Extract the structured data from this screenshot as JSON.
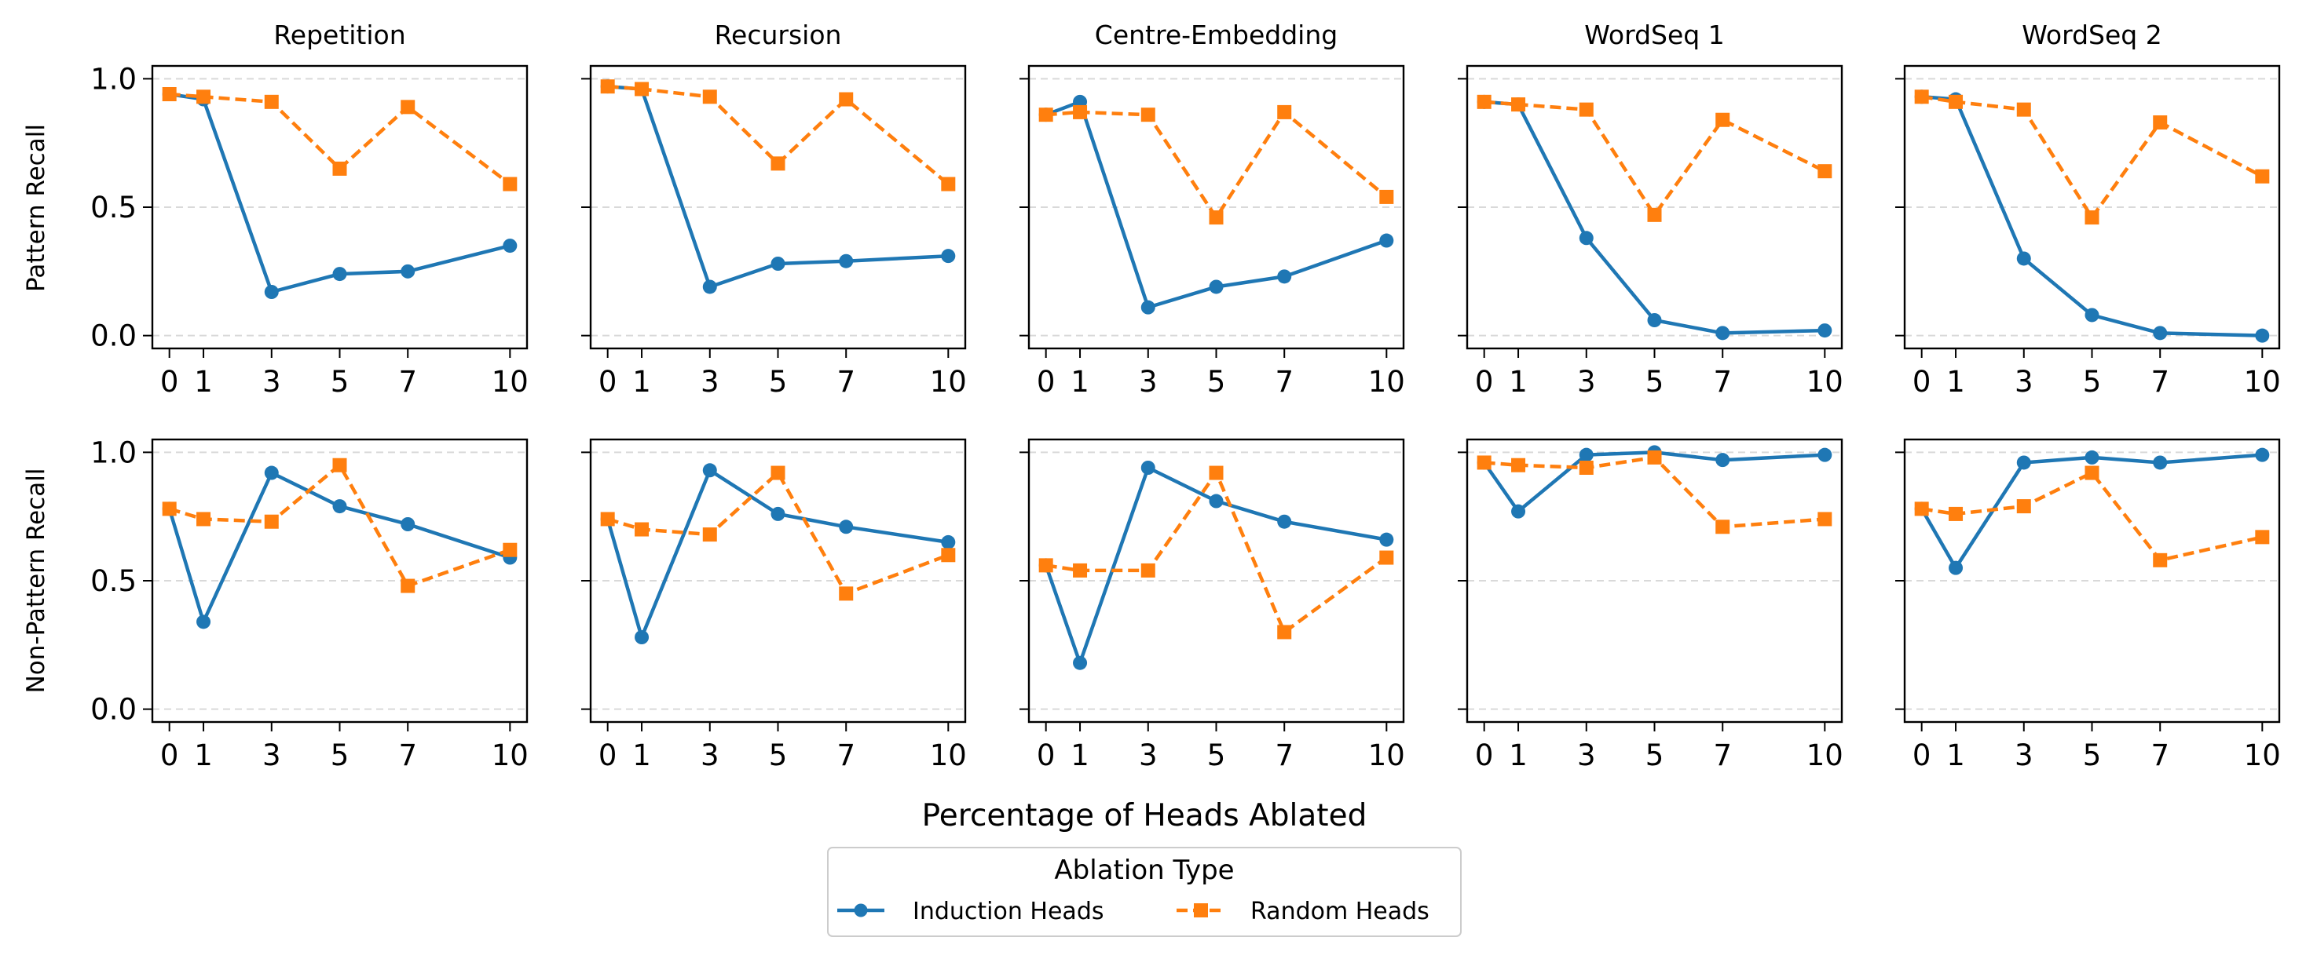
{
  "chart_data": {
    "type": "line",
    "x": [
      0,
      1,
      3,
      5,
      7,
      10
    ],
    "x_ticks": [
      "0",
      "1",
      "3",
      "5",
      "7",
      "10"
    ],
    "xlim": [
      -0.5,
      10.5
    ],
    "ylim": [
      -0.05,
      1.05
    ],
    "y_ticks": [
      "0.0",
      "0.5",
      "1.0"
    ],
    "grid": "horizontal dashed",
    "xlabel": "Percentage of Heads Ablated",
    "row_labels": [
      "Pattern Recall",
      "Non-Pattern Recall"
    ],
    "legend": {
      "title": "Ablation Type",
      "placement": "bottom-center",
      "entries": [
        {
          "name": "Induction Heads",
          "color": "#1f77b4",
          "marker": "circle",
          "linestyle": "solid"
        },
        {
          "name": "Random Heads",
          "color": "#ff7f0e",
          "marker": "square",
          "linestyle": "dashed"
        }
      ]
    },
    "panels": [
      {
        "title": "Repetition",
        "row": "Pattern Recall",
        "series": [
          {
            "name": "Induction Heads",
            "values": [
              0.94,
              0.92,
              0.17,
              0.24,
              0.25,
              0.35
            ]
          },
          {
            "name": "Random Heads",
            "values": [
              0.94,
              0.93,
              0.91,
              0.65,
              0.89,
              0.59
            ]
          }
        ]
      },
      {
        "title": "Recursion",
        "row": "Pattern Recall",
        "series": [
          {
            "name": "Induction Heads",
            "values": [
              0.97,
              0.96,
              0.19,
              0.28,
              0.29,
              0.31
            ]
          },
          {
            "name": "Random Heads",
            "values": [
              0.97,
              0.96,
              0.93,
              0.67,
              0.92,
              0.59
            ]
          }
        ]
      },
      {
        "title": "Centre-Embedding",
        "row": "Pattern Recall",
        "series": [
          {
            "name": "Induction Heads",
            "values": [
              0.86,
              0.91,
              0.11,
              0.19,
              0.23,
              0.37
            ]
          },
          {
            "name": "Random Heads",
            "values": [
              0.86,
              0.87,
              0.86,
              0.46,
              0.87,
              0.54
            ]
          }
        ]
      },
      {
        "title": "WordSeq 1",
        "row": "Pattern Recall",
        "series": [
          {
            "name": "Induction Heads",
            "values": [
              0.91,
              0.9,
              0.38,
              0.06,
              0.01,
              0.02
            ]
          },
          {
            "name": "Random Heads",
            "values": [
              0.91,
              0.9,
              0.88,
              0.47,
              0.84,
              0.64
            ]
          }
        ]
      },
      {
        "title": "WordSeq 2",
        "row": "Pattern Recall",
        "series": [
          {
            "name": "Induction Heads",
            "values": [
              0.93,
              0.92,
              0.3,
              0.08,
              0.01,
              0.0
            ]
          },
          {
            "name": "Random Heads",
            "values": [
              0.93,
              0.91,
              0.88,
              0.46,
              0.83,
              0.62
            ]
          }
        ]
      },
      {
        "title": "",
        "row": "Non-Pattern Recall",
        "series": [
          {
            "name": "Induction Heads",
            "values": [
              0.78,
              0.34,
              0.92,
              0.79,
              0.72,
              0.59
            ]
          },
          {
            "name": "Random Heads",
            "values": [
              0.78,
              0.74,
              0.73,
              0.95,
              0.48,
              0.62
            ]
          }
        ]
      },
      {
        "title": "",
        "row": "Non-Pattern Recall",
        "series": [
          {
            "name": "Induction Heads",
            "values": [
              0.74,
              0.28,
              0.93,
              0.76,
              0.71,
              0.65
            ]
          },
          {
            "name": "Random Heads",
            "values": [
              0.74,
              0.7,
              0.68,
              0.92,
              0.45,
              0.6
            ]
          }
        ]
      },
      {
        "title": "",
        "row": "Non-Pattern Recall",
        "series": [
          {
            "name": "Induction Heads",
            "values": [
              0.56,
              0.18,
              0.94,
              0.81,
              0.73,
              0.66
            ]
          },
          {
            "name": "Random Heads",
            "values": [
              0.56,
              0.54,
              0.54,
              0.92,
              0.3,
              0.59
            ]
          }
        ]
      },
      {
        "title": "",
        "row": "Non-Pattern Recall",
        "series": [
          {
            "name": "Induction Heads",
            "values": [
              0.96,
              0.77,
              0.99,
              1.0,
              0.97,
              0.99
            ]
          },
          {
            "name": "Random Heads",
            "values": [
              0.96,
              0.95,
              0.94,
              0.98,
              0.71,
              0.74
            ]
          }
        ]
      },
      {
        "title": "",
        "row": "Non-Pattern Recall",
        "series": [
          {
            "name": "Induction Heads",
            "values": [
              0.78,
              0.55,
              0.96,
              0.98,
              0.96,
              0.99
            ]
          },
          {
            "name": "Random Heads",
            "values": [
              0.78,
              0.76,
              0.79,
              0.92,
              0.58,
              0.67
            ]
          }
        ]
      }
    ]
  }
}
